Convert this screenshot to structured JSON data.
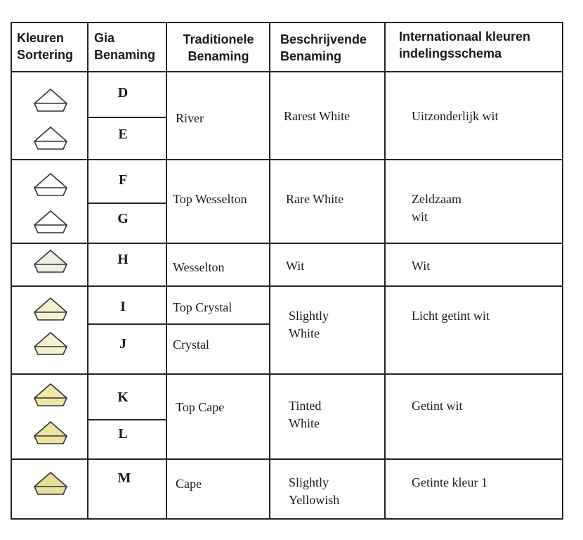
{
  "headers": {
    "sort": [
      "Kleuren",
      "Sortering"
    ],
    "gia": [
      "Gia",
      "Benaming"
    ],
    "trad": [
      "Traditionele",
      "Benaming"
    ],
    "desc": [
      "Beschrijvende",
      "Benaming"
    ],
    "intl": [
      "Internationaal kleuren",
      "indelingsschema"
    ]
  },
  "grades": [
    "D",
    "E",
    "F",
    "G",
    "H",
    "I",
    "J",
    "K",
    "L",
    "M"
  ],
  "diamond_colors": [
    "#ffffff",
    "#ffffff",
    "#ffffff",
    "#ffffff",
    "#f0efe4",
    "#f6f1cf",
    "#f6f1cf",
    "#efe7a6",
    "#ede3a0",
    "#e9dd98"
  ],
  "traditional": [
    "River",
    "Top Wesselton",
    "Wesselton",
    "Top Crystal",
    "Crystal",
    "Top Cape",
    "Cape"
  ],
  "descriptive": [
    [
      "Rarest White"
    ],
    [
      "Rare White"
    ],
    [
      "Wit"
    ],
    [
      "Slightly",
      "White"
    ],
    [
      "Tinted",
      "White"
    ],
    [
      "Slightly",
      "Yellowish"
    ]
  ],
  "international": [
    [
      "Uitzonderlijk wit"
    ],
    [
      "Zeldzaam",
      "wit"
    ],
    [
      "Wit"
    ],
    [
      "Licht getint wit"
    ],
    [
      "Getint wit"
    ],
    [
      "Getinte kleur 1"
    ]
  ]
}
